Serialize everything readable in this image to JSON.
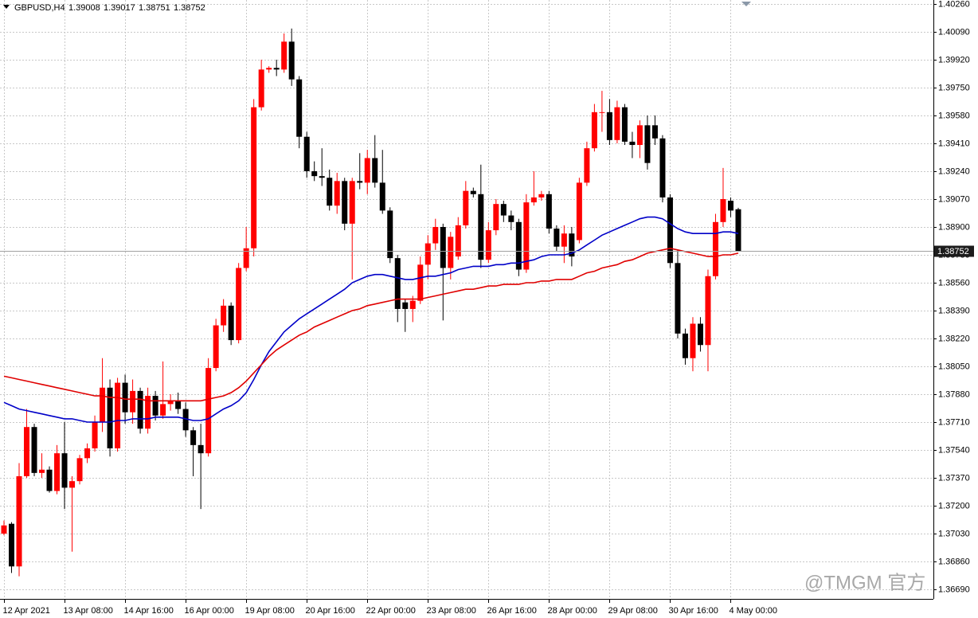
{
  "chart_data": {
    "type": "candlestick",
    "title": "GBPUSD,H4",
    "watermark": "@TMGM 官方",
    "bull_color": "#ff0000",
    "bear_color": "#000000",
    "categories": [
      "12 Apr 2021",
      null,
      null,
      null,
      null,
      null,
      null,
      null,
      "13 Apr 08:00",
      null,
      null,
      null,
      null,
      null,
      null,
      null,
      "14 Apr 16:00",
      null,
      null,
      null,
      null,
      null,
      null,
      null,
      "16 Apr 00:00",
      null,
      null,
      null,
      null,
      null,
      null,
      null,
      "19 Apr 08:00",
      null,
      null,
      null,
      null,
      null,
      null,
      null,
      "20 Apr 16:00",
      null,
      null,
      null,
      null,
      null,
      null,
      null,
      "22 Apr 00:00",
      null,
      null,
      null,
      null,
      null,
      null,
      null,
      "23 Apr 08:00",
      null,
      null,
      null,
      null,
      null,
      null,
      null,
      "26 Apr 16:00",
      null,
      null,
      null,
      null,
      null,
      null,
      null,
      "28 Apr 00:00",
      null,
      null,
      null,
      null,
      null,
      null,
      null,
      "29 Apr 08:00",
      null,
      null,
      null,
      null,
      null,
      null,
      null,
      "30 Apr 16:00",
      null,
      null,
      null,
      null,
      null,
      null,
      null,
      "4 May 00:00",
      null
    ],
    "open": [
      1.3703,
      1.3709,
      1.3683,
      1.3738,
      1.3768,
      1.374,
      1.3742,
      1.3729,
      1.3752,
      1.3731,
      1.3735,
      1.3749,
      1.3755,
      1.3771,
      1.3792,
      1.3755,
      1.3795,
      1.3777,
      1.379,
      1.3767,
      1.3787,
      1.3775,
      1.3782,
      1.3784,
      1.3779,
      1.3766,
      1.3757,
      1.3752,
      1.3804,
      1.383,
      1.3842,
      1.3821,
      1.3865,
      1.3877,
      1.3963,
      1.3986,
      1.3987,
      1.3986,
      1.4003,
      1.398,
      1.3945,
      1.3924,
      1.3921,
      1.392,
      1.3903,
      1.3918,
      1.3892,
      1.3918,
      1.3917,
      1.3932,
      1.3917,
      1.39,
      1.3871,
      1.3844,
      1.384,
      1.3845,
      1.3867,
      1.388,
      1.389,
      1.3865,
      1.3872,
      1.3891,
      1.3912,
      1.391,
      1.387,
      1.3888,
      1.3904,
      1.3897,
      1.3893,
      1.3864,
      1.3905,
      1.3908,
      1.391,
      1.3889,
      1.3878,
      1.3886,
      1.3882,
      1.3917,
      1.3938,
      1.396,
      1.396,
      1.3943,
      1.3963,
      1.3942,
      1.394,
      1.3952,
      1.3952,
      1.3944,
      1.3908,
      1.3868,
      1.3825,
      1.381,
      1.3831,
      1.3818,
      1.386,
      1.3893,
      1.3906,
      1.39008
    ],
    "high": [
      1.3711,
      1.371,
      1.3746,
      1.3779,
      1.377,
      1.3752,
      1.3744,
      1.3757,
      1.3771,
      1.3738,
      1.3751,
      1.3758,
      1.3775,
      1.381,
      1.3797,
      1.3798,
      1.38,
      1.3797,
      1.3792,
      1.3792,
      1.379,
      1.3808,
      1.3788,
      1.3789,
      1.3783,
      1.3768,
      1.377,
      1.381,
      1.3834,
      1.3846,
      1.3844,
      1.3868,
      1.389,
      1.3968,
      1.3992,
      1.3988,
      1.3992,
      1.4008,
      1.4011,
      1.3982,
      1.3948,
      1.393,
      1.3938,
      1.3925,
      1.3923,
      1.392,
      1.392,
      1.3935,
      1.3937,
      1.3946,
      1.3937,
      1.3902,
      1.3873,
      1.3846,
      1.3848,
      1.3872,
      1.3885,
      1.3895,
      1.3892,
      1.3887,
      1.3896,
      1.3918,
      1.3914,
      1.3928,
      1.3893,
      1.3907,
      1.3906,
      1.39,
      1.3895,
      1.391,
      1.3924,
      1.3912,
      1.3912,
      1.3891,
      1.3891,
      1.389,
      1.392,
      1.3942,
      1.3965,
      1.3973,
      1.3968,
      1.3967,
      1.3965,
      1.3948,
      1.3955,
      1.3958,
      1.3958,
      1.3946,
      1.391,
      1.3876,
      1.3828,
      1.3835,
      1.3835,
      1.3864,
      1.3898,
      1.3926,
      1.3908,
      1.39017
    ],
    "low": [
      1.3702,
      1.3679,
      1.3677,
      1.3737,
      1.3738,
      1.3737,
      1.3728,
      1.3727,
      1.3718,
      1.3692,
      1.3733,
      1.3746,
      1.3753,
      1.3765,
      1.375,
      1.3753,
      1.377,
      1.377,
      1.3764,
      1.3764,
      1.3772,
      1.3773,
      1.3778,
      1.3776,
      1.3762,
      1.3738,
      1.3718,
      1.375,
      1.3802,
      1.3826,
      1.3818,
      1.3819,
      1.3863,
      1.3872,
      1.3961,
      1.3984,
      1.3982,
      1.3984,
      1.3976,
      1.3938,
      1.392,
      1.3918,
      1.3915,
      1.39,
      1.3898,
      1.3888,
      1.3858,
      1.3913,
      1.391,
      1.3914,
      1.3898,
      1.3868,
      1.3832,
      1.3826,
      1.3832,
      1.3843,
      1.3858,
      1.3876,
      1.3833,
      1.3858,
      1.387,
      1.3889,
      1.3908,
      1.3865,
      1.3868,
      1.3885,
      1.3893,
      1.3888,
      1.386,
      1.3862,
      1.3903,
      1.3906,
      1.3886,
      1.3875,
      1.3868,
      1.3866,
      1.388,
      1.3915,
      1.3936,
      1.3948,
      1.394,
      1.3941,
      1.394,
      1.3932,
      1.3932,
      1.3925,
      1.394,
      1.3905,
      1.3865,
      1.3822,
      1.3806,
      1.3802,
      1.3814,
      1.3802,
      1.3858,
      1.389,
      1.3896,
      1.38751
    ],
    "close": [
      1.3708,
      1.3683,
      1.3738,
      1.3768,
      1.374,
      1.3742,
      1.3729,
      1.3752,
      1.3731,
      1.3735,
      1.3749,
      1.3755,
      1.3771,
      1.3792,
      1.3755,
      1.3795,
      1.3777,
      1.379,
      1.3767,
      1.3787,
      1.3775,
      1.3782,
      1.3784,
      1.3779,
      1.3766,
      1.3757,
      1.3752,
      1.3804,
      1.383,
      1.3842,
      1.3821,
      1.3865,
      1.3877,
      1.3963,
      1.3986,
      1.3987,
      1.3986,
      1.4003,
      1.398,
      1.3945,
      1.3924,
      1.3921,
      1.392,
      1.3903,
      1.3918,
      1.3892,
      1.3918,
      1.3917,
      1.3932,
      1.3917,
      1.39,
      1.3871,
      1.384,
      1.384,
      1.3845,
      1.3867,
      1.388,
      1.389,
      1.3865,
      1.3884,
      1.3891,
      1.3912,
      1.391,
      1.387,
      1.3888,
      1.3904,
      1.3897,
      1.3893,
      1.3864,
      1.3905,
      1.3908,
      1.391,
      1.3889,
      1.3878,
      1.3886,
      1.3872,
      1.3917,
      1.3938,
      1.396,
      1.396,
      1.3943,
      1.3963,
      1.3942,
      1.394,
      1.3952,
      1.3929,
      1.3944,
      1.3908,
      1.3868,
      1.3825,
      1.381,
      1.3831,
      1.3818,
      1.386,
      1.3893,
      1.3907,
      1.39,
      1.38752
    ],
    "ma_lines": [
      {
        "color": "#0000c8",
        "values": [
          1.3783,
          1.3781,
          1.3779,
          1.3778,
          1.3777,
          1.3776,
          1.3775,
          1.3774,
          1.3773,
          1.3773,
          1.3772,
          1.3771,
          1.3771,
          1.3771,
          1.3771,
          1.3772,
          1.3772,
          1.3773,
          1.3773,
          1.3773,
          1.3774,
          1.3774,
          1.3774,
          1.3774,
          1.3773,
          1.3772,
          1.3772,
          1.3773,
          1.3776,
          1.3779,
          1.3781,
          1.3784,
          1.3789,
          1.3797,
          1.3806,
          1.3814,
          1.382,
          1.3826,
          1.383,
          1.3834,
          1.3837,
          1.384,
          1.3843,
          1.3846,
          1.3849,
          1.3852,
          1.3856,
          1.3858,
          1.386,
          1.3861,
          1.3861,
          1.386,
          1.3859,
          1.3858,
          1.3858,
          1.3859,
          1.386,
          1.386,
          1.3861,
          1.3862,
          1.3864,
          1.3865,
          1.3866,
          1.3866,
          1.3866,
          1.3867,
          1.3867,
          1.3868,
          1.3868,
          1.3869,
          1.387,
          1.3872,
          1.3873,
          1.3873,
          1.3873,
          1.3874,
          1.3876,
          1.3879,
          1.3882,
          1.3885,
          1.3887,
          1.3889,
          1.3891,
          1.3893,
          1.3895,
          1.3896,
          1.3896,
          1.3895,
          1.3892,
          1.3889,
          1.3887,
          1.3886,
          1.3886,
          1.3886,
          1.3886,
          1.3887,
          1.3887,
          1.3886
        ]
      },
      {
        "color": "#e00000",
        "values": [
          1.3799,
          1.3798,
          1.3797,
          1.3796,
          1.3795,
          1.3794,
          1.3793,
          1.3792,
          1.3791,
          1.379,
          1.3789,
          1.3788,
          1.3787,
          1.3787,
          1.3786,
          1.3786,
          1.3785,
          1.3785,
          1.3785,
          1.3784,
          1.3784,
          1.3784,
          1.3784,
          1.3784,
          1.3784,
          1.3784,
          1.3784,
          1.3785,
          1.3786,
          1.3787,
          1.3789,
          1.3792,
          1.3796,
          1.3801,
          1.3806,
          1.3811,
          1.3815,
          1.3818,
          1.3821,
          1.3824,
          1.3826,
          1.3829,
          1.3831,
          1.3833,
          1.3835,
          1.3837,
          1.3839,
          1.384,
          1.3842,
          1.3843,
          1.3844,
          1.3845,
          1.3846,
          1.3846,
          1.3846,
          1.3846,
          1.3847,
          1.3848,
          1.3849,
          1.385,
          1.3851,
          1.3852,
          1.3852,
          1.3853,
          1.3854,
          1.3854,
          1.3855,
          1.3855,
          1.3855,
          1.3856,
          1.3856,
          1.3857,
          1.3857,
          1.3858,
          1.3858,
          1.3858,
          1.386,
          1.3862,
          1.3863,
          1.3865,
          1.3866,
          1.3867,
          1.3869,
          1.387,
          1.3872,
          1.3874,
          1.3875,
          1.3876,
          1.3877,
          1.3876,
          1.3875,
          1.3874,
          1.3873,
          1.3872,
          1.3872,
          1.3873,
          1.3873,
          1.3874
        ]
      }
    ],
    "ylim": [
      1.36632,
      1.40284
    ],
    "yticks": [
      {
        "value": 1.4026,
        "label": "1.40260"
      },
      {
        "value": 1.4009,
        "label": "1.40090"
      },
      {
        "value": 1.3992,
        "label": "1.39920"
      },
      {
        "value": 1.3975,
        "label": "1.39750"
      },
      {
        "value": 1.3958,
        "label": "1.39580"
      },
      {
        "value": 1.3941,
        "label": "1.39410"
      },
      {
        "value": 1.3924,
        "label": "1.39240"
      },
      {
        "value": 1.3907,
        "label": "1.39070"
      },
      {
        "value": 1.389,
        "label": "1.38900"
      },
      {
        "value": 1.3873,
        "label": "1.38730"
      },
      {
        "value": 1.3856,
        "label": "1.38560"
      },
      {
        "value": 1.3839,
        "label": "1.38390"
      },
      {
        "value": 1.3822,
        "label": "1.38220"
      },
      {
        "value": 1.3805,
        "label": "1.38050"
      },
      {
        "value": 1.3788,
        "label": "1.37880"
      },
      {
        "value": 1.3771,
        "label": "1.37710"
      },
      {
        "value": 1.3754,
        "label": "1.37540"
      },
      {
        "value": 1.3737,
        "label": "1.37370"
      },
      {
        "value": 1.372,
        "label": "1.37200"
      },
      {
        "value": 1.3703,
        "label": "1.37030"
      },
      {
        "value": 1.3686,
        "label": "1.36860"
      },
      {
        "value": 1.3669,
        "label": "1.36690"
      }
    ],
    "grid": true
  }
}
